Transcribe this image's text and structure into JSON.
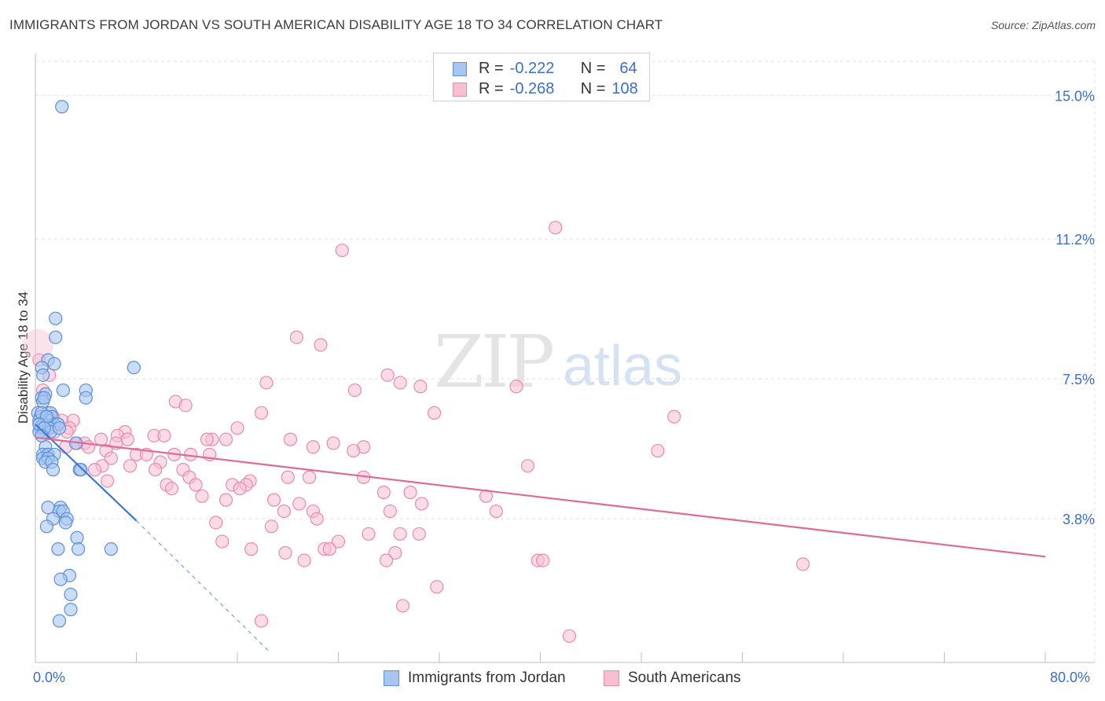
{
  "title": "IMMIGRANTS FROM JORDAN VS SOUTH AMERICAN DISABILITY AGE 18 TO 34 CORRELATION CHART",
  "source": "Source: ZipAtlas.com",
  "watermark": {
    "zip": "ZIP",
    "atlas": "atlas"
  },
  "legend": {
    "jordan": {
      "r_label": "R =",
      "r_value": "-0.222",
      "n_label": "N =",
      "n_value": "64"
    },
    "south": {
      "r_label": "R =",
      "r_value": "-0.268",
      "n_label": "N =",
      "n_value": "108"
    }
  },
  "bottom_legend": {
    "jordan": "Immigrants from Jordan",
    "south": "South Americans"
  },
  "colors": {
    "jordan_fill": "#a9c6f0",
    "jordan_stroke": "#5b8fd8",
    "jordan_line": "#3a78d4",
    "south_fill": "#f7c0d2",
    "south_stroke": "#e98aab",
    "south_line": "#e06a96",
    "accent_text": "#3a6fc9",
    "grid": "#e2e2e2"
  },
  "chart_data": {
    "type": "scatter",
    "title": "IMMIGRANTS FROM JORDAN VS SOUTH AMERICAN DISABILITY AGE 18 TO 34 CORRELATION CHART",
    "xlabel": "",
    "ylabel": "Disability Age 18 to 34",
    "xlim": [
      0,
      80
    ],
    "ylim": [
      0,
      15.9
    ],
    "x_tick_labels": [
      "0.0%",
      "80.0%"
    ],
    "y_ticks": [
      3.8,
      7.5,
      11.2,
      15.0
    ],
    "y_tick_labels": [
      "3.8%",
      "7.5%",
      "11.2%",
      "15.0%"
    ],
    "grid": true,
    "series": [
      {
        "name": "Immigrants from Jordan",
        "R": -0.222,
        "N": 64,
        "trend": {
          "x": [
            0.0,
            8.0
          ],
          "y": [
            6.3,
            3.75
          ],
          "dashed_extension_to": [
            18.5,
            0.3
          ]
        },
        "points": [
          [
            2.1,
            14.7
          ],
          [
            1.6,
            9.1
          ],
          [
            1.6,
            8.6
          ],
          [
            1.0,
            8.0
          ],
          [
            1.5,
            7.9
          ],
          [
            0.5,
            7.8
          ],
          [
            7.8,
            7.8
          ],
          [
            0.6,
            7.6
          ],
          [
            2.2,
            7.2
          ],
          [
            4.0,
            7.2
          ],
          [
            0.8,
            7.1
          ],
          [
            0.5,
            7.0
          ],
          [
            4.0,
            7.0
          ],
          [
            0.6,
            6.9
          ],
          [
            0.2,
            6.6
          ],
          [
            1.2,
            6.6
          ],
          [
            0.4,
            6.5
          ],
          [
            0.8,
            6.5
          ],
          [
            1.3,
            6.5
          ],
          [
            0.3,
            6.4
          ],
          [
            1.0,
            6.4
          ],
          [
            0.6,
            6.3
          ],
          [
            1.5,
            6.3
          ],
          [
            1.8,
            6.3
          ],
          [
            0.4,
            6.2
          ],
          [
            1.1,
            6.2
          ],
          [
            0.3,
            6.1
          ],
          [
            1.2,
            6.1
          ],
          [
            3.2,
            5.8
          ],
          [
            0.8,
            5.7
          ],
          [
            0.6,
            5.5
          ],
          [
            1.0,
            5.5
          ],
          [
            1.5,
            5.5
          ],
          [
            0.6,
            5.4
          ],
          [
            1.0,
            5.4
          ],
          [
            0.8,
            5.3
          ],
          [
            1.3,
            5.3
          ],
          [
            1.4,
            5.1
          ],
          [
            3.5,
            5.1
          ],
          [
            3.6,
            5.1
          ],
          [
            1.0,
            4.1
          ],
          [
            2.0,
            4.1
          ],
          [
            1.9,
            4.0
          ],
          [
            2.2,
            4.0
          ],
          [
            1.4,
            3.8
          ],
          [
            2.5,
            3.8
          ],
          [
            2.4,
            3.7
          ],
          [
            0.9,
            3.6
          ],
          [
            3.3,
            3.3
          ],
          [
            1.8,
            3.0
          ],
          [
            3.4,
            3.0
          ],
          [
            6.0,
            3.0
          ],
          [
            2.7,
            2.3
          ],
          [
            2.0,
            2.2
          ],
          [
            2.8,
            1.8
          ],
          [
            2.8,
            1.4
          ],
          [
            1.9,
            1.1
          ],
          [
            0.5,
            6.6
          ],
          [
            0.9,
            6.5
          ],
          [
            0.3,
            6.3
          ],
          [
            0.7,
            6.2
          ],
          [
            1.9,
            6.2
          ],
          [
            0.5,
            6.0
          ],
          [
            0.7,
            7.0
          ]
        ]
      },
      {
        "name": "South Americans",
        "R": -0.268,
        "N": 108,
        "trend": {
          "x": [
            0.0,
            80.0
          ],
          "y": [
            5.95,
            2.8
          ]
        },
        "points": [
          [
            41.2,
            11.5
          ],
          [
            24.3,
            10.9
          ],
          [
            20.7,
            8.6
          ],
          [
            22.6,
            8.4
          ],
          [
            0.3,
            8.0
          ],
          [
            1.1,
            7.6
          ],
          [
            27.9,
            7.6
          ],
          [
            18.3,
            7.4
          ],
          [
            28.9,
            7.4
          ],
          [
            30.5,
            7.3
          ],
          [
            25.3,
            7.2
          ],
          [
            0.6,
            7.2
          ],
          [
            38.1,
            7.3
          ],
          [
            11.1,
            6.9
          ],
          [
            11.9,
            6.8
          ],
          [
            17.9,
            6.6
          ],
          [
            31.6,
            6.6
          ],
          [
            50.6,
            6.5
          ],
          [
            1.0,
            6.6
          ],
          [
            1.4,
            6.5
          ],
          [
            2.1,
            6.4
          ],
          [
            3.0,
            6.4
          ],
          [
            1.8,
            6.3
          ],
          [
            2.7,
            6.2
          ],
          [
            16.0,
            6.2
          ],
          [
            0.7,
            6.1
          ],
          [
            1.5,
            6.1
          ],
          [
            2.5,
            6.1
          ],
          [
            7.1,
            6.1
          ],
          [
            9.4,
            6.0
          ],
          [
            6.5,
            6.0
          ],
          [
            10.2,
            6.0
          ],
          [
            5.2,
            5.9
          ],
          [
            7.3,
            5.9
          ],
          [
            14.0,
            5.9
          ],
          [
            20.2,
            5.9
          ],
          [
            3.3,
            5.8
          ],
          [
            3.9,
            5.8
          ],
          [
            6.4,
            5.8
          ],
          [
            13.6,
            5.9
          ],
          [
            15.1,
            5.9
          ],
          [
            23.6,
            5.8
          ],
          [
            2.4,
            5.7
          ],
          [
            4.2,
            5.7
          ],
          [
            5.6,
            5.6
          ],
          [
            22.0,
            5.7
          ],
          [
            26.0,
            5.7
          ],
          [
            25.2,
            5.6
          ],
          [
            8.0,
            5.5
          ],
          [
            8.8,
            5.5
          ],
          [
            11.0,
            5.5
          ],
          [
            12.3,
            5.5
          ],
          [
            13.8,
            5.5
          ],
          [
            49.3,
            5.6
          ],
          [
            6.0,
            5.4
          ],
          [
            9.9,
            5.3
          ],
          [
            5.3,
            5.2
          ],
          [
            7.5,
            5.2
          ],
          [
            11.7,
            5.1
          ],
          [
            39.0,
            5.2
          ],
          [
            4.7,
            5.1
          ],
          [
            9.5,
            5.1
          ],
          [
            12.2,
            4.9
          ],
          [
            20.0,
            4.9
          ],
          [
            21.7,
            4.9
          ],
          [
            26.0,
            4.9
          ],
          [
            5.7,
            4.8
          ],
          [
            15.6,
            4.7
          ],
          [
            17.0,
            4.8
          ],
          [
            10.4,
            4.7
          ],
          [
            12.7,
            4.7
          ],
          [
            16.7,
            4.7
          ],
          [
            16.2,
            4.6
          ],
          [
            10.8,
            4.6
          ],
          [
            27.6,
            4.5
          ],
          [
            29.7,
            4.5
          ],
          [
            13.2,
            4.4
          ],
          [
            30.6,
            4.2
          ],
          [
            15.1,
            4.3
          ],
          [
            18.9,
            4.3
          ],
          [
            20.9,
            4.2
          ],
          [
            35.7,
            4.4
          ],
          [
            19.7,
            4.0
          ],
          [
            22.0,
            4.0
          ],
          [
            28.1,
            4.0
          ],
          [
            36.5,
            4.0
          ],
          [
            22.3,
            3.8
          ],
          [
            14.3,
            3.7
          ],
          [
            18.7,
            3.6
          ],
          [
            26.4,
            3.4
          ],
          [
            28.9,
            3.4
          ],
          [
            30.4,
            3.4
          ],
          [
            24.0,
            3.2
          ],
          [
            14.8,
            3.2
          ],
          [
            22.9,
            3.0
          ],
          [
            23.3,
            3.0
          ],
          [
            17.1,
            3.0
          ],
          [
            19.8,
            2.9
          ],
          [
            28.5,
            2.9
          ],
          [
            21.3,
            2.7
          ],
          [
            27.8,
            2.7
          ],
          [
            39.8,
            2.7
          ],
          [
            40.2,
            2.7
          ],
          [
            60.8,
            2.6
          ],
          [
            31.8,
            2.0
          ],
          [
            29.1,
            1.5
          ],
          [
            17.9,
            1.1
          ],
          [
            42.3,
            0.7
          ]
        ]
      }
    ]
  }
}
